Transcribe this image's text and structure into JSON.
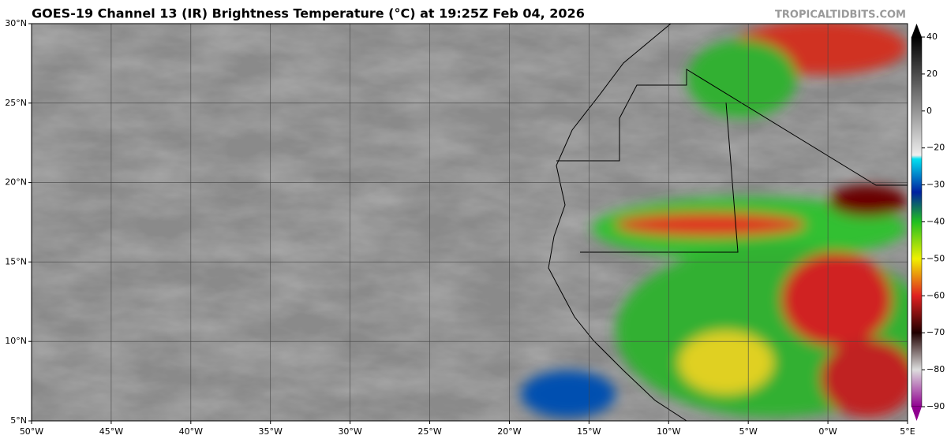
{
  "header": {
    "title": "GOES-19 Channel 13 (IR) Brightness Temperature (°C) at 19:25Z Feb 04, 2026",
    "watermark": "TROPICALTIDBITS.COM"
  },
  "map": {
    "lat_labels": [
      "30°N",
      "25°N",
      "20°N",
      "15°N",
      "10°N",
      "5°N"
    ],
    "lon_labels": [
      "50°W",
      "45°W",
      "40°W",
      "35°W",
      "30°W",
      "25°W",
      "20°W",
      "15°W",
      "10°W",
      "5°W",
      "0°W",
      "5°E"
    ]
  },
  "colorbar": {
    "labels": [
      "40",
      "20",
      "0",
      "−20",
      "−30",
      "−40",
      "−50",
      "−60",
      "−70",
      "−80",
      "−90"
    ]
  }
}
